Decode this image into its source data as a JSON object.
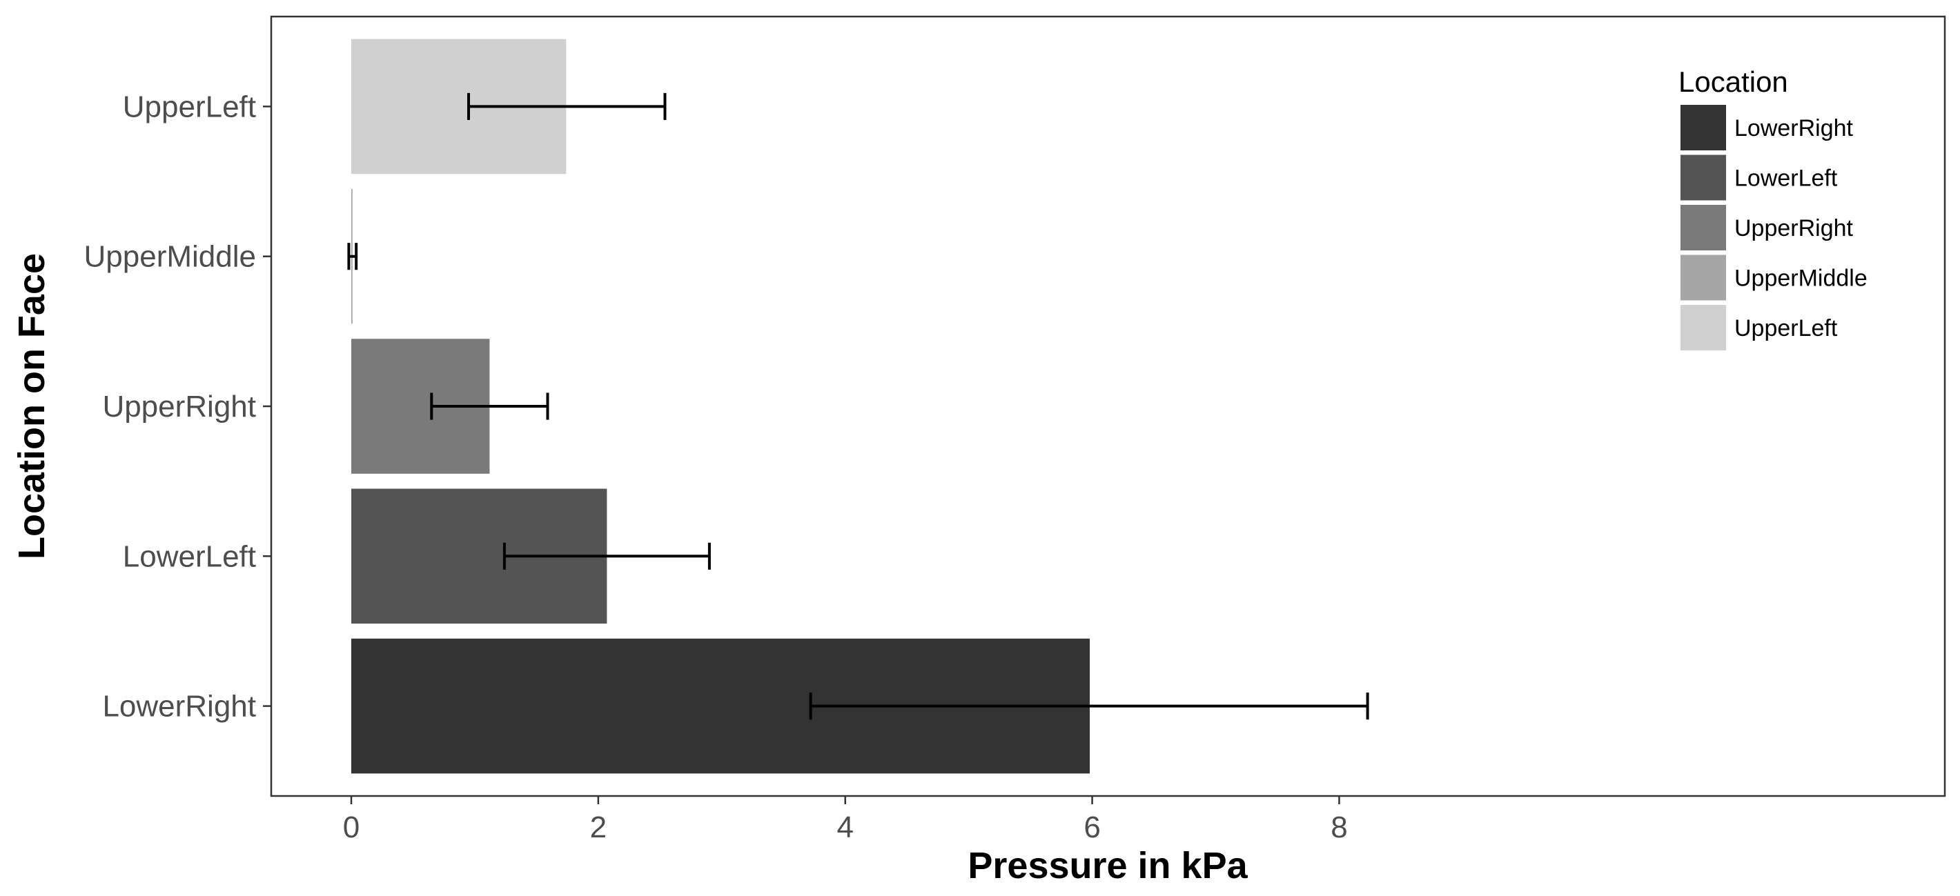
{
  "chart_data": {
    "type": "bar",
    "orientation": "horizontal",
    "title": "",
    "xlabel": "Pressure in kPa",
    "ylabel": "Location on Face",
    "xlim": [
      -0.35,
      8.75
    ],
    "xticks": [
      0,
      2,
      4,
      6,
      8
    ],
    "grid": false,
    "legend_position": "top-right",
    "legend_title": "Location",
    "categories": [
      "LowerRight",
      "LowerLeft",
      "UpperRight",
      "UpperMiddle",
      "UpperLeft"
    ],
    "values": [
      5.98,
      2.07,
      1.12,
      0.01,
      1.74
    ],
    "error_low": [
      3.72,
      1.24,
      0.65,
      -0.02,
      0.95
    ],
    "error_high": [
      8.23,
      2.9,
      1.59,
      0.04,
      2.54
    ],
    "colors": [
      "#333333",
      "#545454",
      "#7a7a7a",
      "#a6a6a6",
      "#d0d0d0"
    ],
    "legend_order": [
      "LowerRight",
      "LowerLeft",
      "UpperRight",
      "UpperMiddle",
      "UpperLeft"
    ]
  }
}
